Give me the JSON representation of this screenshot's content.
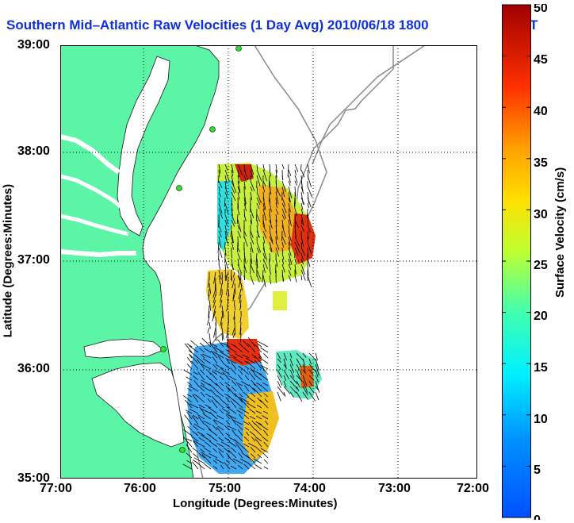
{
  "title": "Southern Mid–Atlantic Raw Velocities (1 Day Avg) 2010/06/18 1800",
  "title_tail": "T",
  "map": {
    "lat_ticks": [
      "39:00",
      "38:00",
      "37:00",
      "36:00",
      "35:00"
    ],
    "lon_ticks": [
      "77:00",
      "76:00",
      "75:00",
      "74:00",
      "73:00",
      "72:00"
    ],
    "xlabel": "Longitude (Degrees:Minutes)",
    "ylabel": "Latitude (Degrees:Minutes)",
    "land_color": "#5cf5a8",
    "grid": "dotted"
  },
  "colorbar": {
    "label": "Surface Velocity (cm/s)",
    "ticks": [
      "50",
      "45",
      "40",
      "35",
      "30",
      "25",
      "20",
      "15",
      "10",
      "5",
      "0"
    ],
    "range": [
      0,
      50
    ]
  }
}
